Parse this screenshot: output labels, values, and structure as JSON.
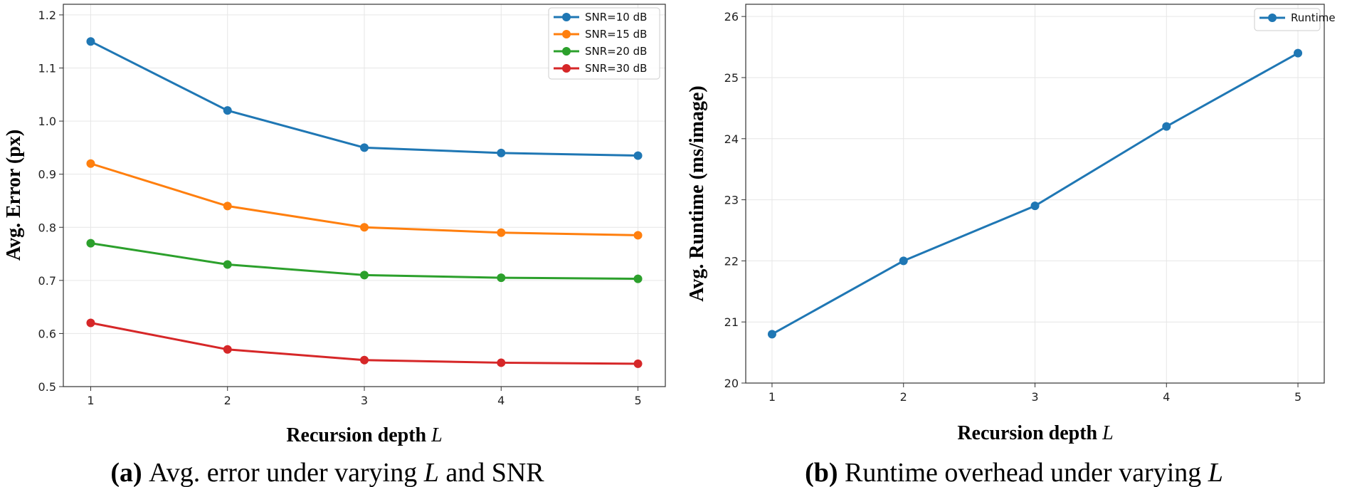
{
  "chart_data": [
    {
      "type": "line",
      "xlabel_text": "Recursion depth",
      "xlabel_var": "L",
      "ylabel": "Avg. Error (px)",
      "x": [
        1,
        2,
        3,
        4,
        5
      ],
      "x_ticks": [
        "1",
        "2",
        "3",
        "4",
        "5"
      ],
      "xlim": [
        0.8,
        5.2
      ],
      "ylim": [
        0.5,
        1.22
      ],
      "y_ticks": [
        "0.5",
        "0.6",
        "0.7",
        "0.8",
        "0.9",
        "1.0",
        "1.1",
        "1.2"
      ],
      "y_tick_values": [
        0.5,
        0.6,
        0.7,
        0.8,
        0.9,
        1.0,
        1.1,
        1.2
      ],
      "grid": true,
      "legend_position": "top-right",
      "series": [
        {
          "name": "SNR=10 dB",
          "color": "#1f77b4",
          "values": [
            1.15,
            1.02,
            0.95,
            0.94,
            0.935
          ]
        },
        {
          "name": "SNR=15 dB",
          "color": "#ff7f0e",
          "values": [
            0.92,
            0.84,
            0.8,
            0.79,
            0.785
          ]
        },
        {
          "name": "SNR=20 dB",
          "color": "#2ca02c",
          "values": [
            0.77,
            0.73,
            0.71,
            0.705,
            0.703
          ]
        },
        {
          "name": "SNR=30 dB",
          "color": "#d62728",
          "values": [
            0.62,
            0.57,
            0.55,
            0.545,
            0.543
          ]
        }
      ],
      "caption": {
        "tag": "(a)",
        "pre": "Avg. error under varying",
        "var": "L",
        "post": "and SNR"
      }
    },
    {
      "type": "line",
      "xlabel_text": "Recursion depth",
      "xlabel_var": "L",
      "ylabel": "Avg. Runtime (ms/image)",
      "x": [
        1,
        2,
        3,
        4,
        5
      ],
      "x_ticks": [
        "1",
        "2",
        "3",
        "4",
        "5"
      ],
      "xlim": [
        0.8,
        5.2
      ],
      "ylim": [
        20,
        26.2
      ],
      "y_ticks": [
        "20",
        "21",
        "22",
        "23",
        "24",
        "25",
        "26"
      ],
      "y_tick_values": [
        20,
        21,
        22,
        23,
        24,
        25,
        26
      ],
      "grid": true,
      "legend_position": "top-right",
      "series": [
        {
          "name": "Runtime",
          "color": "#1f77b4",
          "values": [
            20.8,
            22.0,
            22.9,
            24.2,
            25.4
          ]
        }
      ],
      "caption": {
        "tag": "(b)",
        "pre": "Runtime overhead under varying",
        "var": "L",
        "post": ""
      }
    }
  ]
}
